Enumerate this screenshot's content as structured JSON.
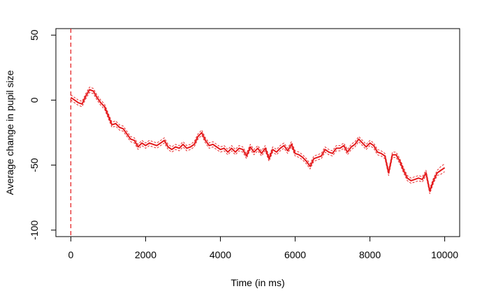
{
  "chart_data": {
    "type": "line",
    "xlabel": "Time (in ms)",
    "ylabel": "Average change in pupil size",
    "xlim": [
      -400,
      10400
    ],
    "ylim": [
      -105,
      55
    ],
    "xticks": [
      0,
      2000,
      4000,
      6000,
      8000,
      10000
    ],
    "xtick_labels": [
      "0",
      "2000",
      "4000",
      "6000",
      "8000",
      "10000"
    ],
    "yticks": [
      -100,
      -50,
      0,
      50
    ],
    "ytick_labels": [
      "-100",
      "-50",
      "0",
      "50"
    ],
    "grid": false,
    "vline": {
      "x": 0,
      "style": "dashed",
      "color": "#e41a1c"
    },
    "series": [
      {
        "role": "mean",
        "color": "#e41a1c",
        "x": [
          0,
          100,
          200,
          300,
          400,
          500,
          600,
          700,
          800,
          900,
          1000,
          1100,
          1200,
          1300,
          1400,
          1500,
          1600,
          1700,
          1800,
          1900,
          2000,
          2100,
          2200,
          2300,
          2400,
          2500,
          2600,
          2700,
          2800,
          2900,
          3000,
          3100,
          3200,
          3300,
          3400,
          3500,
          3600,
          3700,
          3800,
          3900,
          4000,
          4100,
          4200,
          4300,
          4400,
          4500,
          4600,
          4700,
          4800,
          4900,
          5000,
          5100,
          5200,
          5300,
          5400,
          5500,
          5600,
          5700,
          5800,
          5900,
          6000,
          6100,
          6200,
          6300,
          6400,
          6500,
          6600,
          6700,
          6800,
          6900,
          7000,
          7100,
          7200,
          7300,
          7400,
          7500,
          7600,
          7700,
          7800,
          7900,
          8000,
          8100,
          8200,
          8300,
          8400,
          8500,
          8600,
          8700,
          8800,
          8900,
          9000,
          9100,
          9200,
          9300,
          9400,
          9500,
          9600,
          9700,
          9800,
          9900,
          10000
        ],
        "y": [
          2,
          0,
          -2,
          -3,
          3,
          8,
          7,
          2,
          -2,
          -5,
          -12,
          -19,
          -18,
          -21,
          -22,
          -26,
          -30,
          -31,
          -36,
          -33,
          -35,
          -33,
          -34,
          -35,
          -33,
          -31,
          -36,
          -38,
          -36,
          -37,
          -34,
          -37,
          -36,
          -34,
          -28,
          -25,
          -31,
          -35,
          -34,
          -36,
          -38,
          -37,
          -40,
          -37,
          -40,
          -37,
          -38,
          -43,
          -36,
          -40,
          -37,
          -41,
          -37,
          -45,
          -38,
          -40,
          -37,
          -35,
          -39,
          -34,
          -41,
          -42,
          -44,
          -47,
          -51,
          -45,
          -44,
          -43,
          -38,
          -40,
          -41,
          -37,
          -37,
          -35,
          -40,
          -36,
          -34,
          -30,
          -33,
          -36,
          -33,
          -35,
          -40,
          -41,
          -43,
          -56,
          -42,
          -42,
          -47,
          -54,
          -60,
          -62,
          -61,
          -60,
          -61,
          -56,
          -70,
          -62,
          -56,
          -54,
          -52
        ]
      },
      {
        "role": "upper",
        "color": "#e41a1c",
        "x": [
          0,
          100,
          200,
          300,
          400,
          500,
          600,
          700,
          800,
          900,
          1000,
          1100,
          1200,
          1300,
          1400,
          1500,
          1600,
          1700,
          1800,
          1900,
          2000,
          2100,
          2200,
          2300,
          2400,
          2500,
          2600,
          2700,
          2800,
          2900,
          3000,
          3100,
          3200,
          3300,
          3400,
          3500,
          3600,
          3700,
          3800,
          3900,
          4000,
          4100,
          4200,
          4300,
          4400,
          4500,
          4600,
          4700,
          4800,
          4900,
          5000,
          5100,
          5200,
          5300,
          5400,
          5500,
          5600,
          5700,
          5800,
          5900,
          6000,
          6100,
          6200,
          6300,
          6400,
          6500,
          6600,
          6700,
          6800,
          6900,
          7000,
          7100,
          7200,
          7300,
          7400,
          7500,
          7600,
          7700,
          7800,
          7900,
          8000,
          8100,
          8200,
          8300,
          8400,
          8500,
          8600,
          8700,
          8800,
          8900,
          9000,
          9100,
          9200,
          9300,
          9400,
          9500,
          9600,
          9700,
          9800,
          9900,
          10000
        ],
        "y": [
          4,
          2,
          0,
          -1,
          5,
          10,
          9,
          4,
          0,
          -3,
          -10,
          -17,
          -16,
          -19,
          -20,
          -24,
          -28,
          -29,
          -34,
          -31,
          -33,
          -31,
          -32,
          -33,
          -31,
          -29,
          -34,
          -36,
          -34,
          -35,
          -32,
          -35,
          -34,
          -32,
          -26,
          -23,
          -29,
          -33,
          -32,
          -34,
          -36,
          -35,
          -38,
          -35,
          -38,
          -35,
          -36,
          -41,
          -34,
          -38,
          -35,
          -39,
          -35,
          -43,
          -36,
          -38,
          -35,
          -33,
          -37,
          -32,
          -39,
          -40,
          -42,
          -45,
          -49,
          -43,
          -42,
          -41,
          -36,
          -38,
          -39,
          -35,
          -35,
          -33,
          -38,
          -34,
          -32,
          -28,
          -31,
          -34,
          -31,
          -33,
          -38,
          -39,
          -41,
          -54,
          -40,
          -40,
          -45,
          -52,
          -58,
          -60,
          -59,
          -58,
          -59,
          -54,
          -68,
          -60,
          -54,
          -51,
          -49
        ]
      },
      {
        "role": "lower",
        "color": "#e41a1c",
        "x": [
          0,
          100,
          200,
          300,
          400,
          500,
          600,
          700,
          800,
          900,
          1000,
          1100,
          1200,
          1300,
          1400,
          1500,
          1600,
          1700,
          1800,
          1900,
          2000,
          2100,
          2200,
          2300,
          2400,
          2500,
          2600,
          2700,
          2800,
          2900,
          3000,
          3100,
          3200,
          3300,
          3400,
          3500,
          3600,
          3700,
          3800,
          3900,
          4000,
          4100,
          4200,
          4300,
          4400,
          4500,
          4600,
          4700,
          4800,
          4900,
          5000,
          5100,
          5200,
          5300,
          5400,
          5500,
          5600,
          5700,
          5800,
          5900,
          6000,
          6100,
          6200,
          6300,
          6400,
          6500,
          6600,
          6700,
          6800,
          6900,
          7000,
          7100,
          7200,
          7300,
          7400,
          7500,
          7600,
          7700,
          7800,
          7900,
          8000,
          8100,
          8200,
          8300,
          8400,
          8500,
          8600,
          8700,
          8800,
          8900,
          9000,
          9100,
          9200,
          9300,
          9400,
          9500,
          9600,
          9700,
          9800,
          9900,
          10000
        ],
        "y": [
          0,
          -2,
          -4,
          -5,
          1,
          6,
          5,
          0,
          -4,
          -7,
          -14,
          -21,
          -20,
          -23,
          -24,
          -28,
          -32,
          -33,
          -38,
          -35,
          -37,
          -35,
          -36,
          -37,
          -35,
          -33,
          -38,
          -40,
          -38,
          -39,
          -36,
          -39,
          -38,
          -36,
          -30,
          -27,
          -33,
          -37,
          -36,
          -38,
          -40,
          -39,
          -42,
          -39,
          -42,
          -39,
          -40,
          -45,
          -38,
          -42,
          -39,
          -43,
          -39,
          -47,
          -40,
          -42,
          -39,
          -37,
          -41,
          -36,
          -43,
          -44,
          -46,
          -49,
          -53,
          -47,
          -46,
          -45,
          -40,
          -42,
          -43,
          -39,
          -39,
          -37,
          -42,
          -38,
          -36,
          -32,
          -35,
          -38,
          -35,
          -37,
          -42,
          -43,
          -45,
          -58,
          -44,
          -44,
          -49,
          -56,
          -62,
          -64,
          -63,
          -62,
          -63,
          -58,
          -72,
          -64,
          -58,
          -57,
          -55
        ]
      }
    ]
  }
}
